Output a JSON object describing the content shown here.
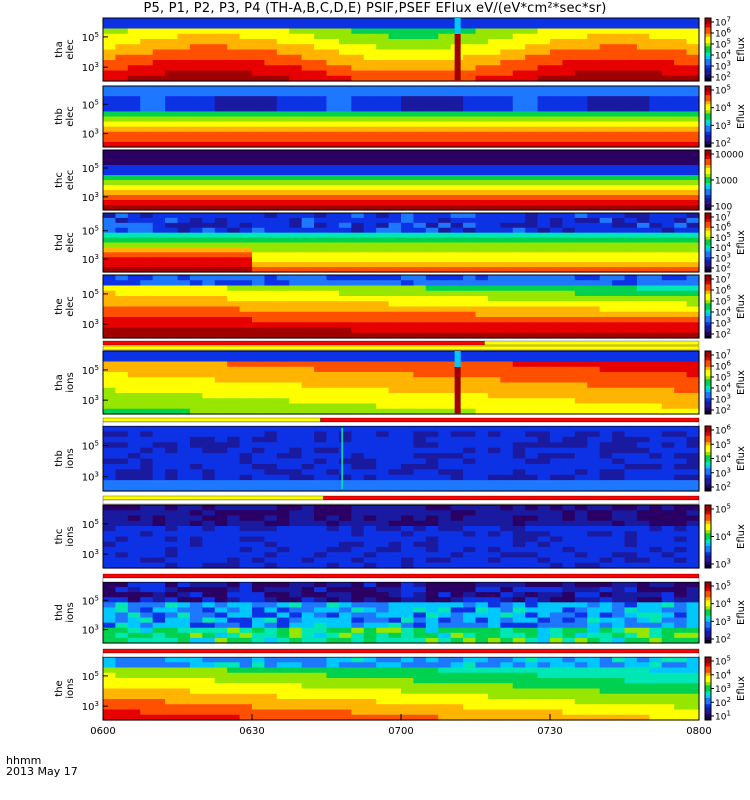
{
  "title": "P5, P1, P2, P3, P4 (TH-A,B,C,D,E) PSIF,PSEF EFlux eV/(eV*cm²*sec*sr)",
  "time_label": "hhmm",
  "date_label": "2013 May 17",
  "chart_data": {
    "type": "heatmap",
    "x_ticks": [
      "0600",
      "0630",
      "0700",
      "0730",
      "0800"
    ],
    "x_range": [
      "06:00",
      "08:00"
    ],
    "y_scale": "log",
    "panels": [
      {
        "label": [
          "tha",
          "elec"
        ],
        "yticks": [
          "10^5",
          "10^3"
        ],
        "cbar_label": "Eflux",
        "cbar_ticks": [
          "10^7",
          "10^6",
          "10^5",
          "10^4",
          "10^3",
          "10^2"
        ]
      },
      {
        "label": [
          "thb",
          "elec"
        ],
        "yticks": [
          "10^5",
          "10^3"
        ],
        "cbar_label": "Eflux",
        "cbar_ticks": [
          "10^5",
          "10^4",
          "10^3",
          "10^2"
        ]
      },
      {
        "label": [
          "thc",
          "elec"
        ],
        "yticks": [
          "10^5",
          "10^3"
        ],
        "cbar_label": "",
        "cbar_ticks": [
          "10000",
          "1000",
          "100"
        ]
      },
      {
        "label": [
          "thd",
          "elec"
        ],
        "yticks": [
          "10^5",
          "10^3"
        ],
        "cbar_label": "Eflux",
        "cbar_ticks": [
          "10^7",
          "10^6",
          "10^5",
          "10^4",
          "10^3",
          "10^2"
        ]
      },
      {
        "label": [
          "the",
          "elec"
        ],
        "yticks": [
          "10^5",
          "10^3"
        ],
        "cbar_label": "Eflux",
        "cbar_ticks": [
          "10^7",
          "10^6",
          "10^5",
          "10^4",
          "10^3",
          "10^2"
        ]
      },
      {
        "label": [
          "tha",
          "ions"
        ],
        "yticks": [
          "10^5",
          "10^3"
        ],
        "cbar_label": "Eflux",
        "cbar_ticks": [
          "10^7",
          "10^6",
          "10^5",
          "10^4",
          "10^3",
          "10^2"
        ]
      },
      {
        "label": [
          "thb",
          "ions"
        ],
        "yticks": [
          "10^5",
          "10^3"
        ],
        "cbar_label": "Eflux",
        "cbar_ticks": [
          "10^6",
          "10^5",
          "10^4",
          "10^3",
          "10^2"
        ]
      },
      {
        "label": [
          "thc",
          "ions"
        ],
        "yticks": [
          "10^5",
          "10^3"
        ],
        "cbar_label": "Eflux",
        "cbar_ticks": [
          "10^5",
          "10^4",
          "10^3"
        ]
      },
      {
        "label": [
          "thd",
          "ions"
        ],
        "yticks": [
          "10^5",
          "10^3"
        ],
        "cbar_label": "Eflux",
        "cbar_ticks": [
          "10^5",
          "10^4",
          "10^3",
          "10^2"
        ]
      },
      {
        "label": [
          "the",
          "ions"
        ],
        "yticks": [
          "10^5",
          "10^3"
        ],
        "cbar_label": "Eflux",
        "cbar_ticks": [
          "10^5",
          "10^4",
          "10^3",
          "10^2",
          "10^1"
        ]
      }
    ],
    "colormap": [
      "#00002a",
      "#2a0064",
      "#1a1aa0",
      "#0d32e6",
      "#1e78ff",
      "#00c8ff",
      "#00e6b4",
      "#00d250",
      "#96e600",
      "#ffff00",
      "#ffb400",
      "#ff5000",
      "#e60000",
      "#a00000"
    ]
  }
}
